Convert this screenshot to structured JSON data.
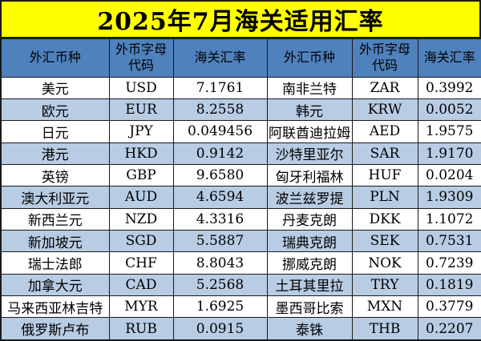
{
  "title": "2025年7月海关适用汇率",
  "table": {
    "headers": [
      "外汇币种",
      "外币字母代码",
      "海关汇率",
      "外汇币种",
      "外币字母代码",
      "海关汇率"
    ],
    "rows": [
      {
        "l_name": "美元",
        "l_code": "USD",
        "l_rate": "7.1761",
        "r_name": "南非兰特",
        "r_code": "ZAR",
        "r_rate": "0.3992"
      },
      {
        "l_name": "欧元",
        "l_code": "EUR",
        "l_rate": "8.2558",
        "r_name": "韩元",
        "r_code": "KRW",
        "r_rate": "0.0052"
      },
      {
        "l_name": "日元",
        "l_code": "JPY",
        "l_rate": "0.049456",
        "r_name": "阿联酋迪拉姆",
        "r_code": "AED",
        "r_rate": "1.9575"
      },
      {
        "l_name": "港元",
        "l_code": "HKD",
        "l_rate": "0.9142",
        "r_name": "沙特里亚尔",
        "r_code": "SAR",
        "r_rate": "1.9170"
      },
      {
        "l_name": "英镑",
        "l_code": "GBP",
        "l_rate": "9.6580",
        "r_name": "匈牙利福林",
        "r_code": "HUF",
        "r_rate": "0.0204"
      },
      {
        "l_name": "澳大利亚元",
        "l_code": "AUD",
        "l_rate": "4.6594",
        "r_name": "波兰兹罗提",
        "r_code": "PLN",
        "r_rate": "1.9309"
      },
      {
        "l_name": "新西兰元",
        "l_code": "NZD",
        "l_rate": "4.3316",
        "r_name": "丹麦克朗",
        "r_code": "DKK",
        "r_rate": "1.1072"
      },
      {
        "l_name": "新加坡元",
        "l_code": "SGD",
        "l_rate": "5.5887",
        "r_name": "瑞典克朗",
        "r_code": "SEK",
        "r_rate": "0.7531"
      },
      {
        "l_name": "瑞士法郎",
        "l_code": "CHF",
        "l_rate": "8.8043",
        "r_name": "挪威克朗",
        "r_code": "NOK",
        "r_rate": "0.7239"
      },
      {
        "l_name": "加拿大元",
        "l_code": "CAD",
        "l_rate": "5.2568",
        "r_name": "土耳其里拉",
        "r_code": "TRY",
        "r_rate": "0.1819"
      },
      {
        "l_name": "马来西亚林吉特",
        "l_code": "MYR",
        "l_rate": "1.6925",
        "r_name": "墨西哥比索",
        "r_code": "MXN",
        "r_rate": "0.3779"
      },
      {
        "l_name": "俄罗斯卢布",
        "l_code": "RUB",
        "l_rate": "0.0915",
        "r_name": "泰铢",
        "r_code": "THB",
        "r_rate": "0.2207"
      }
    ]
  },
  "colors": {
    "title_bg": "#ffff00",
    "header_bg": "#4f81bd",
    "alt_row_bg": "#b8cce4",
    "row_bg": "#ffffff",
    "border": "#1a1a1a",
    "text": "#000000"
  }
}
